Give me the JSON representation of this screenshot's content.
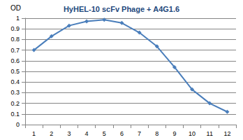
{
  "chart_data": {
    "type": "line",
    "title": "HyHEL-10 scFv Phage + A4G1.6",
    "y_label": "OD",
    "categories": [
      "1",
      "2",
      "3",
      "4",
      "5",
      "6",
      "7",
      "8",
      "9",
      "10",
      "11",
      "12"
    ],
    "values": [
      0.7,
      0.83,
      0.93,
      0.97,
      0.985,
      0.955,
      0.865,
      0.735,
      0.54,
      0.33,
      0.2,
      0.12
    ],
    "color": "#4a7ebb",
    "marker": "diamond",
    "line_style": "solid",
    "ylim": [
      0,
      1
    ],
    "yticks": [
      0,
      0.1,
      0.2,
      0.3,
      0.4,
      0.5,
      0.6,
      0.7,
      0.8,
      0.9,
      1
    ],
    "grid": true
  }
}
